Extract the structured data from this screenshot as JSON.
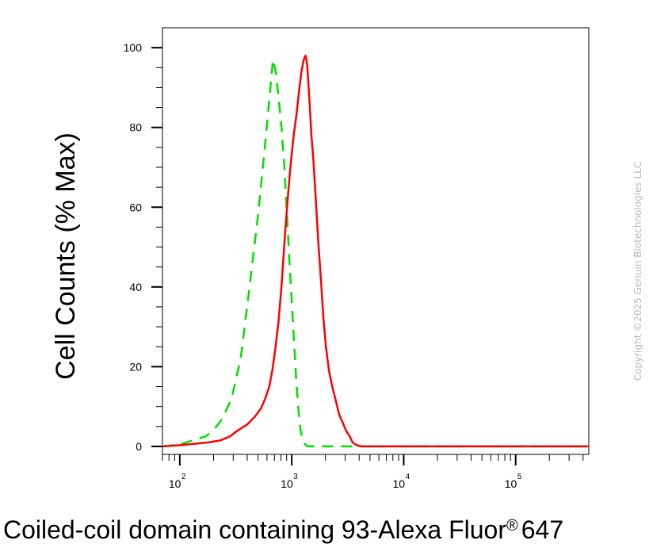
{
  "chart_data": {
    "type": "line",
    "xlabel": "Coiled-coil domain containing 93-Alexa Fluor",
    "xlabel_suffix": "647",
    "xlabel_mark": "®",
    "ylabel": "Cell Counts (% Max)",
    "x_scale": "log",
    "xlim": [
      70,
      450000
    ],
    "ylim": [
      -2,
      105
    ],
    "yticks": [
      0,
      20,
      40,
      60,
      80,
      100
    ],
    "y_tick_labels": [
      "0",
      "20",
      "40",
      "60",
      "80",
      "100"
    ],
    "xticks": [
      100,
      1000,
      10000,
      100000
    ],
    "x_tick_labels": [
      {
        "base": "10",
        "exp": "2"
      },
      {
        "base": "10",
        "exp": "3"
      },
      {
        "base": "10",
        "exp": "4"
      },
      {
        "base": "10",
        "exp": "5"
      }
    ],
    "grid": false,
    "series": [
      {
        "color": "#00e000",
        "style": "dashed",
        "x": [
          70,
          100,
          130,
          170,
          200,
          240,
          290,
          350,
          420,
          500,
          570,
          630,
          680,
          720,
          760,
          810,
          860,
          910,
          960,
          1010,
          1060,
          1100,
          1150,
          1200,
          1260,
          1320,
          1380,
          1460,
          1600,
          2000,
          5000,
          20000,
          450000
        ],
        "y": [
          0,
          0.5,
          1.5,
          2.5,
          4,
          7,
          12,
          22,
          40,
          58,
          74,
          87,
          97,
          94,
          88,
          80,
          70,
          57,
          45,
          34,
          24,
          16,
          9,
          4,
          1.5,
          0.5,
          0,
          0,
          0,
          0,
          0,
          0,
          0
        ]
      },
      {
        "color": "#ff0000",
        "style": "solid",
        "x": [
          70,
          100,
          130,
          180,
          230,
          280,
          330,
          400,
          470,
          530,
          580,
          630,
          670,
          710,
          760,
          810,
          860,
          920,
          980,
          1040,
          1100,
          1160,
          1220,
          1280,
          1330,
          1370,
          1410,
          1450,
          1500,
          1560,
          1640,
          1720,
          1820,
          1920,
          2020,
          2150,
          2300,
          2450,
          2650,
          2850,
          3050,
          3300,
          3500,
          3800,
          4200,
          5000,
          10000,
          100000,
          450000
        ],
        "y": [
          0,
          0.3,
          0.6,
          1,
          1.5,
          2.5,
          4,
          5.5,
          7.5,
          9.5,
          12,
          15,
          19,
          24,
          31,
          40,
          51,
          62,
          71,
          78,
          83,
          89,
          94,
          97,
          98,
          96,
          91,
          85,
          78,
          72,
          62,
          52,
          42,
          32,
          25,
          19,
          15,
          12,
          8,
          6,
          4,
          2.5,
          1,
          0.3,
          0,
          0,
          0,
          0,
          0
        ]
      }
    ]
  },
  "copyright": "Copyright ©2025 Genuin Biotechnologies LLC"
}
